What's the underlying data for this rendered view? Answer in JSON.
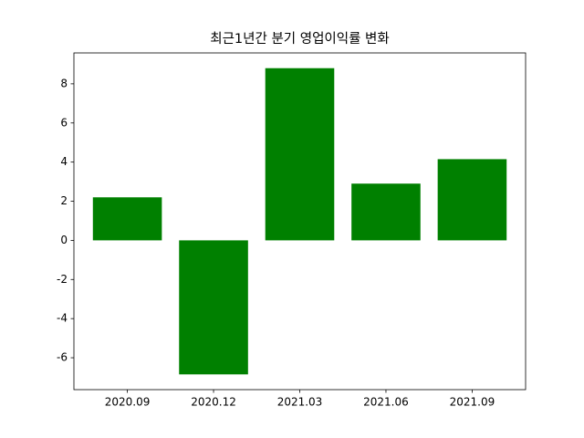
{
  "chart_data": {
    "type": "bar",
    "title": "최근1년간 분기 영업이익률 변화",
    "categories": [
      "2020.09",
      "2020.12",
      "2021.03",
      "2021.06",
      "2021.09"
    ],
    "values": [
      2.2,
      -6.85,
      8.8,
      2.9,
      4.15
    ],
    "color": "#008000",
    "ylim": [
      -7.63,
      9.58
    ],
    "yticks": [
      -6,
      -4,
      -2,
      0,
      2,
      4,
      6,
      8
    ],
    "grid": false
  }
}
